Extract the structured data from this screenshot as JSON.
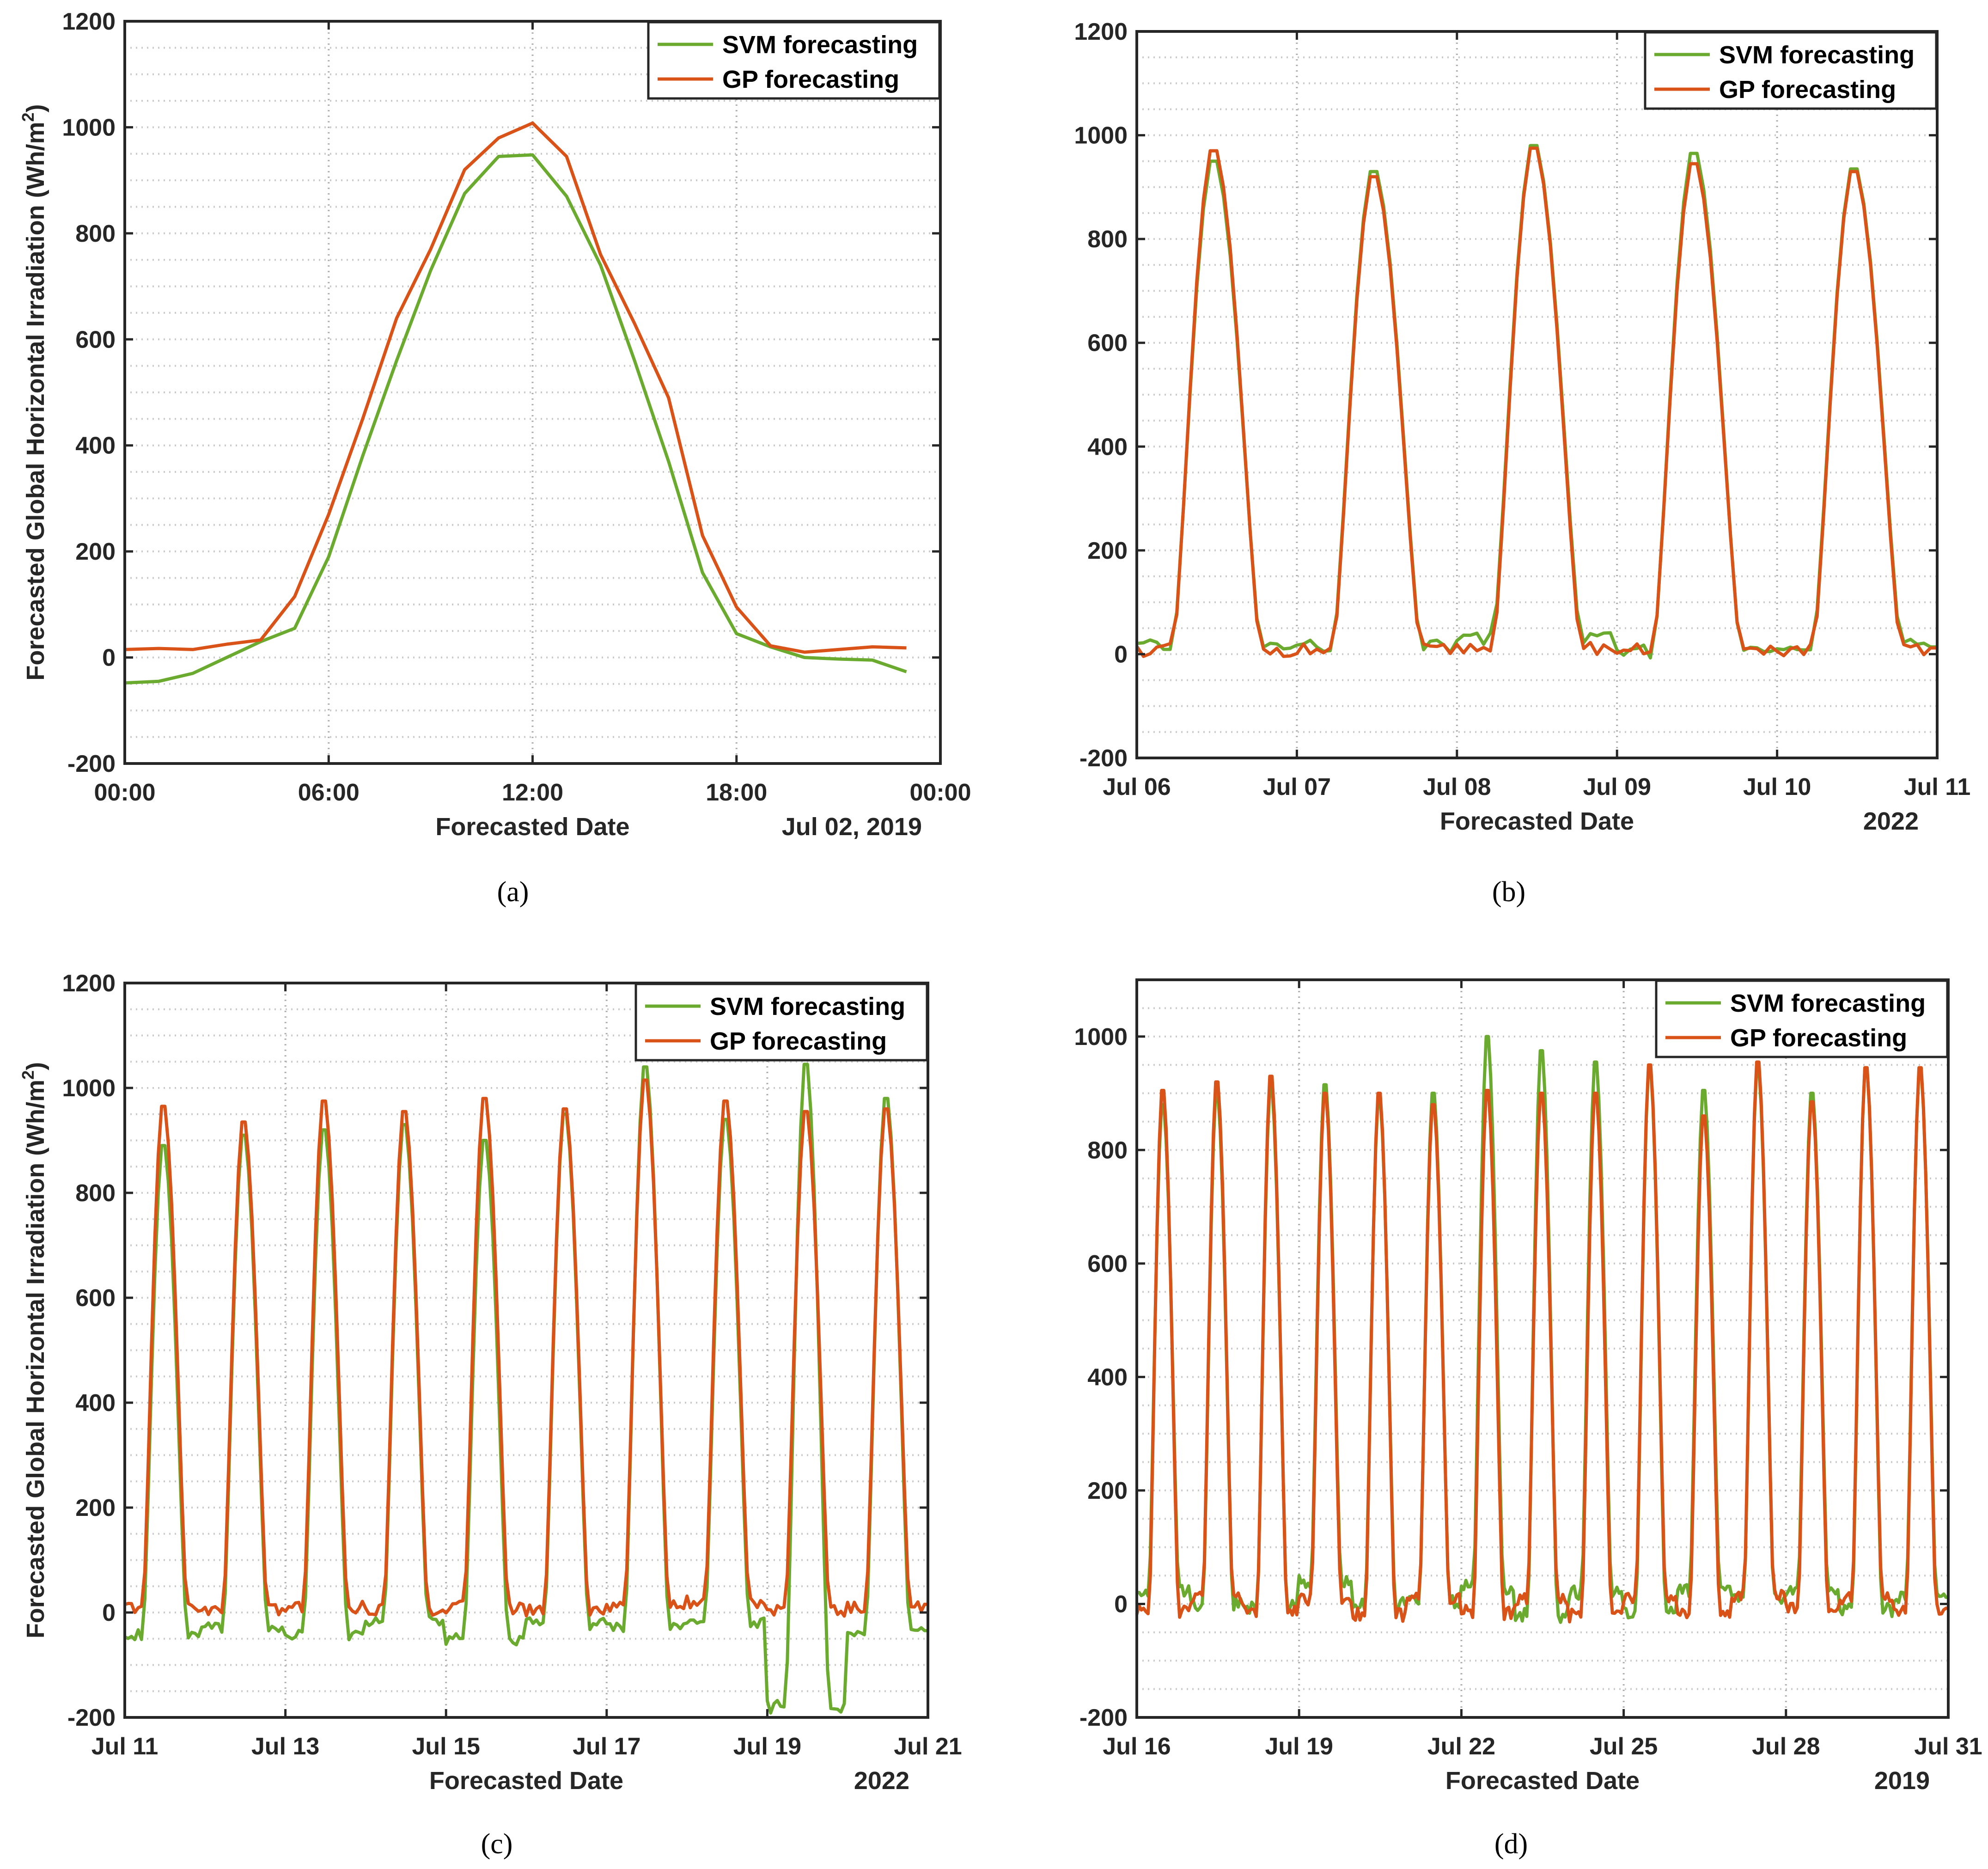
{
  "figure": {
    "ylabel": "Forecasted Global Horizontal Irradiation (Wh/m",
    "ylabel_sup": "2",
    "ylabel_close": ")",
    "series_colors": {
      "SVM forecasting": "#6aaa2e",
      "GP forecasting": "#d95319"
    }
  },
  "chart_data": [
    {
      "type": "line",
      "caption": "(a)",
      "xlabel": "Forecasted Date",
      "corner_label": "Jul 02, 2019",
      "xlim": [
        0,
        24
      ],
      "xticks": [
        0,
        6,
        12,
        18,
        24
      ],
      "xtick_labels": [
        "00:00",
        "06:00",
        "12:00",
        "18:00",
        "00:00"
      ],
      "ylim": [
        -200,
        1200
      ],
      "yticks": [
        -200,
        0,
        200,
        400,
        600,
        800,
        1000,
        1200
      ],
      "ytick_labels": [
        "-200",
        "0",
        "200",
        "400",
        "600",
        "800",
        "1000",
        "1200"
      ],
      "show_ylabel": true,
      "legend": [
        "SVM forecasting",
        "GP forecasting"
      ],
      "series": [
        {
          "name": "SVM forecasting",
          "x": [
            0,
            1,
            2,
            3,
            4,
            5,
            6,
            7,
            8,
            9,
            10,
            11,
            12,
            13,
            14,
            15,
            16,
            17,
            18,
            19,
            20,
            21,
            22,
            23
          ],
          "values": [
            -48,
            -45,
            -30,
            0,
            30,
            55,
            190,
            380,
            560,
            730,
            875,
            945,
            948,
            870,
            740,
            560,
            370,
            160,
            45,
            20,
            0,
            -3,
            -5,
            -27
          ]
        },
        {
          "name": "GP forecasting",
          "x": [
            0,
            1,
            2,
            3,
            4,
            5,
            6,
            7,
            8,
            9,
            10,
            11,
            12,
            13,
            14,
            15,
            16,
            17,
            18,
            19,
            20,
            21,
            22,
            23
          ],
          "values": [
            15,
            17,
            15,
            25,
            33,
            115,
            270,
            450,
            640,
            770,
            920,
            980,
            1008,
            945,
            760,
            630,
            490,
            230,
            95,
            22,
            10,
            15,
            20,
            18
          ]
        }
      ]
    },
    {
      "type": "line",
      "caption": "(b)",
      "xlabel": "Forecasted Date",
      "corner_label": "2022",
      "xlim": [
        6,
        11
      ],
      "xticks": [
        6,
        7,
        8,
        9,
        10,
        11
      ],
      "xtick_labels": [
        "Jul 06",
        "Jul 07",
        "Jul 08",
        "Jul 09",
        "Jul 10",
        "Jul 11"
      ],
      "ylim": [
        -200,
        1200
      ],
      "yticks": [
        -200,
        0,
        200,
        400,
        600,
        800,
        1000,
        1200
      ],
      "ytick_labels": [
        "-200",
        "0",
        "200",
        "400",
        "600",
        "800",
        "1000",
        "1200"
      ],
      "show_ylabel": false,
      "legend": [
        "SVM forecasting",
        "GP forecasting"
      ],
      "series": [
        {
          "name": "SVM forecasting",
          "start": 6,
          "step": 0.0417,
          "peaks": [
            950,
            930,
            980,
            965,
            935
          ],
          "night": [
            15,
            15,
            30,
            5,
            20
          ],
          "peak_hour": 11.5
        },
        {
          "name": "GP forecasting",
          "start": 6,
          "step": 0.0417,
          "peaks": [
            970,
            920,
            975,
            945,
            930
          ],
          "night": [
            8,
            8,
            12,
            8,
            8
          ],
          "peak_hour": 11.5
        }
      ]
    },
    {
      "type": "line",
      "caption": "(c)",
      "xlabel": "Forecasted Date",
      "corner_label": "2022",
      "xlim": [
        11,
        21
      ],
      "xticks": [
        11,
        13,
        15,
        17,
        19,
        21
      ],
      "xtick_labels": [
        "Jul 11",
        "Jul 13",
        "Jul 15",
        "Jul 17",
        "Jul 19",
        "Jul 21"
      ],
      "ylim": [
        -200,
        1200
      ],
      "yticks": [
        -200,
        0,
        200,
        400,
        600,
        800,
        1000,
        1200
      ],
      "ytick_labels": [
        "-200",
        "0",
        "200",
        "400",
        "600",
        "800",
        "1000",
        "1200"
      ],
      "show_ylabel": true,
      "legend": [
        "SVM forecasting",
        "GP forecasting"
      ],
      "series": [
        {
          "name": "SVM forecasting",
          "start": 11,
          "step": 0.0417,
          "peaks": [
            890,
            910,
            920,
            930,
            900,
            950,
            1040,
            940,
            1045,
            980
          ],
          "night": [
            -40,
            -30,
            -40,
            -20,
            -50,
            -20,
            -30,
            -20,
            -180,
            -40
          ],
          "peak_hour": 11.5
        },
        {
          "name": "GP forecasting",
          "start": 11,
          "step": 0.0417,
          "peaks": [
            965,
            935,
            975,
            955,
            980,
            960,
            1015,
            975,
            955,
            960
          ],
          "night": [
            10,
            5,
            10,
            5,
            10,
            5,
            10,
            20,
            5,
            10
          ],
          "peak_hour": 11.5
        }
      ]
    },
    {
      "type": "line",
      "caption": "(d)",
      "xlabel": "Forecasted Date",
      "corner_label": "2019",
      "xlim": [
        16,
        31
      ],
      "xticks": [
        16,
        19,
        22,
        25,
        28,
        31
      ],
      "xtick_labels": [
        "Jul 16",
        "Jul 19",
        "Jul 22",
        "Jul 25",
        "Jul 28",
        "Jul 31"
      ],
      "ylim": [
        -200,
        1100
      ],
      "yticks": [
        -200,
        0,
        200,
        400,
        600,
        800,
        1000
      ],
      "ytick_labels": [
        "-200",
        "0",
        "200",
        "400",
        "600",
        "800",
        "1000"
      ],
      "show_ylabel": false,
      "legend": [
        "SVM forecasting",
        "GP forecasting"
      ],
      "series": [
        {
          "name": "SVM forecasting",
          "start": 16,
          "step": 0.0417,
          "peaks": [
            880,
            900,
            910,
            915,
            890,
            900,
            1000,
            975,
            955,
            945,
            905,
            945,
            900,
            945,
            940
          ],
          "night": [
            25,
            0,
            -5,
            40,
            0,
            5,
            30,
            -20,
            20,
            -15,
            25,
            10,
            20,
            -10,
            15
          ],
          "peak_hour": 11.5
        },
        {
          "name": "GP forecasting",
          "start": 16,
          "step": 0.0417,
          "peaks": [
            905,
            920,
            930,
            900,
            900,
            880,
            905,
            900,
            900,
            950,
            860,
            955,
            885,
            945,
            945
          ],
          "night": [
            -15,
            10,
            -10,
            10,
            -20,
            10,
            -15,
            10,
            -20,
            10,
            -15,
            15,
            -10,
            10,
            -10
          ],
          "peak_hour": 11.5
        }
      ]
    }
  ]
}
